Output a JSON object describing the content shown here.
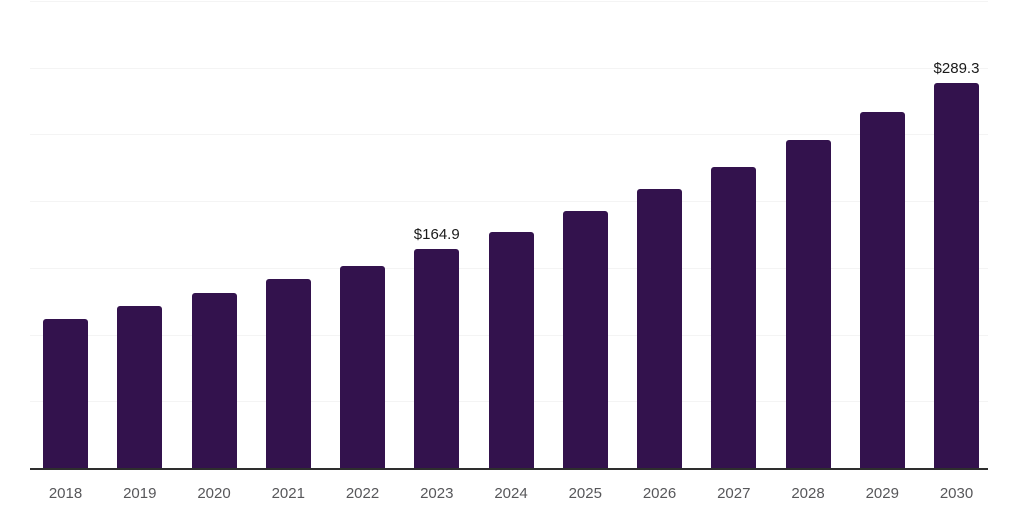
{
  "chart_data": {
    "type": "bar",
    "title": "",
    "xlabel": "",
    "ylabel": "",
    "categories": [
      "2018",
      "2019",
      "2020",
      "2021",
      "2022",
      "2023",
      "2024",
      "2025",
      "2026",
      "2027",
      "2028",
      "2029",
      "2030"
    ],
    "values": [
      112.4,
      122.2,
      131.9,
      142.4,
      152.1,
      164.9,
      178.0,
      193.4,
      209.8,
      226.3,
      246.6,
      267.5,
      289.3
    ],
    "data_labels": {
      "2023": "$164.9",
      "2030": "$289.3"
    },
    "ylim": [
      0,
      350
    ],
    "grid_step": 50,
    "grid": true,
    "legend": false,
    "colors": {
      "bar": "#33124d",
      "grid_line": "#f4f4f4",
      "axis_line": "#2e2e2e",
      "tick_label": "#57575a",
      "data_label": "#1a1a1a",
      "background": "#ffffff"
    }
  }
}
